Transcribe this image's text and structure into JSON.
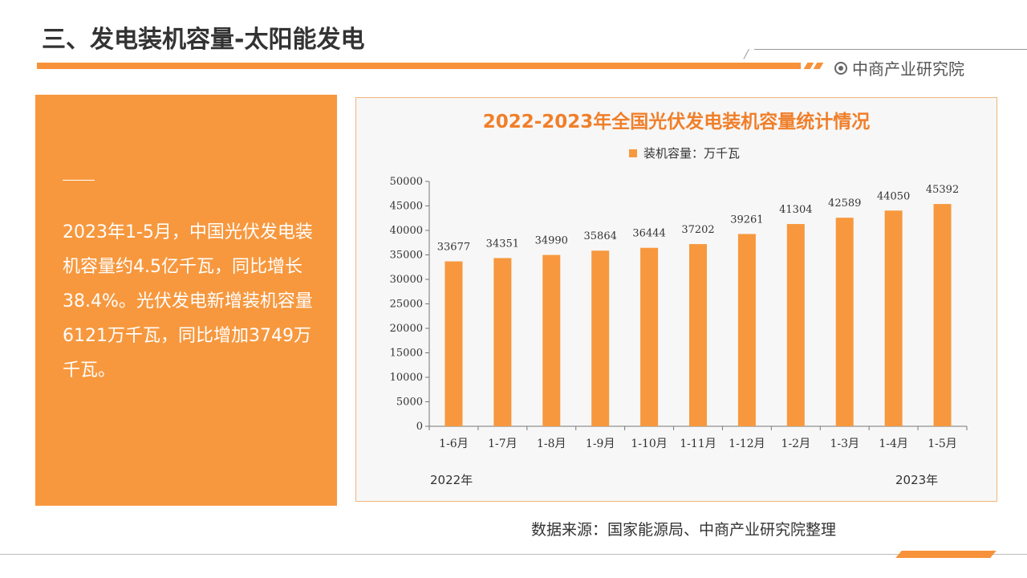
{
  "header": {
    "title": "三、发电装机容量-太阳能发电",
    "brand": "中商产业研究院"
  },
  "summary": {
    "text": "2023年1-5月，中国光伏发电装机容量约4.5亿千瓦，同比增长38.4%。光伏发电新增装机容量6121万千瓦，同比增加3749万千瓦。"
  },
  "chart_data": {
    "type": "bar",
    "title": "2022-2023年全国光伏发电装机容量统计情况",
    "categories": [
      "1-6月",
      "1-7月",
      "1-8月",
      "1-9月",
      "1-10月",
      "1-11月",
      "1-12月",
      "1-2月",
      "1-3月",
      "1-4月",
      "1-5月"
    ],
    "series": [
      {
        "name": "装机容量：万千瓦",
        "values": [
          33677,
          34351,
          34990,
          35864,
          36444,
          37202,
          39261,
          41304,
          42589,
          44050,
          45392
        ]
      }
    ],
    "ylim": [
      0,
      50000
    ],
    "yticks": [
      0,
      5000,
      10000,
      15000,
      20000,
      25000,
      30000,
      35000,
      40000,
      45000,
      50000
    ],
    "groups": [
      "2022年",
      "2023年"
    ],
    "bar_color": "#f7983e",
    "grid": false,
    "legend_position": "top"
  },
  "footer": {
    "source": "数据来源：国家能源局、中商产业研究院整理"
  },
  "colors": {
    "accent": "#f7923a",
    "panel": "#f7983e",
    "chart_title": "#f07f2a"
  }
}
